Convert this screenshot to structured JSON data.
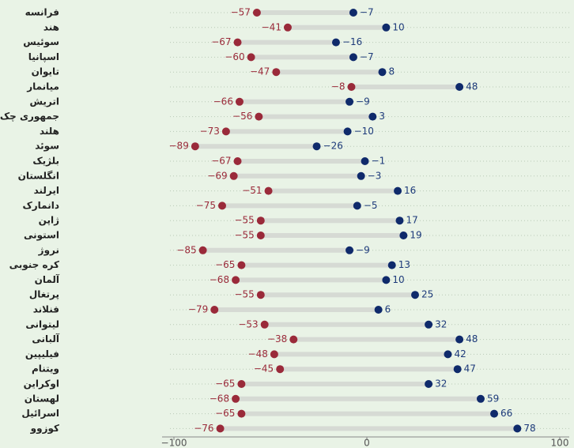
{
  "chart_data": {
    "type": "dumbbell",
    "categories": [
      "فرانسه",
      "هند",
      "سوئیس",
      "اسپانیا",
      "تایوان",
      "میانمار",
      "اتریش",
      "جمهوری چک",
      "هلند",
      "سوئد",
      "بلژیک",
      "انگلستان",
      "ایرلند",
      "دانمارک",
      "ژاپن",
      "استونی",
      "نروژ",
      "کره جنوبی",
      "آلمان",
      "پرتغال",
      "فنلاند",
      "لیتوانی",
      "آلبانی",
      "فیلیپین",
      "ویتنام",
      "اوکراین",
      "لهستان",
      "اسرائیل",
      "کوزوو"
    ],
    "series": [
      {
        "color": "#9a2a3a",
        "values": [
          -57,
          -41,
          -67,
          -60,
          -47,
          -8,
          -66,
          -56,
          -73,
          -89,
          -67,
          -69,
          -51,
          -75,
          -55,
          -55,
          -85,
          -65,
          -68,
          -55,
          -79,
          -53,
          -38,
          -48,
          -45,
          -65,
          -68,
          -65,
          -76
        ],
        "value_labels": [
          "−57",
          "−41",
          "−67",
          "−60",
          "−47",
          "−8",
          "−66",
          "−56",
          "−73",
          "−89",
          "−67",
          "−69",
          "−51",
          "−75",
          "−55",
          "−55",
          "−85",
          "−65",
          "−68",
          "−55",
          "−79",
          "−53",
          "−38",
          "−48",
          "−45",
          "−65",
          "−68",
          "−65",
          "−76"
        ]
      },
      {
        "color": "#0f2a6b",
        "values": [
          -7,
          10,
          -16,
          -7,
          8,
          48,
          -9,
          3,
          -10,
          -26,
          -1,
          -3,
          16,
          -5,
          17,
          19,
          -9,
          13,
          10,
          25,
          6,
          32,
          48,
          42,
          47,
          32,
          59,
          66,
          78
        ],
        "value_labels": [
          "−7",
          "10",
          "−16",
          "−7",
          "8",
          "48",
          "−9",
          "3",
          "−10",
          "−26",
          "−1",
          "−3",
          "16",
          "−5",
          "17",
          "19",
          "−9",
          "13",
          "10",
          "25",
          "6",
          "32",
          "48",
          "42",
          "47",
          "32",
          "59",
          "66",
          "78"
        ]
      }
    ],
    "xlim": [
      -100,
      100
    ],
    "xticks": [
      {
        "value": -100,
        "label": "−100"
      },
      0,
      100
    ],
    "grid": true
  }
}
